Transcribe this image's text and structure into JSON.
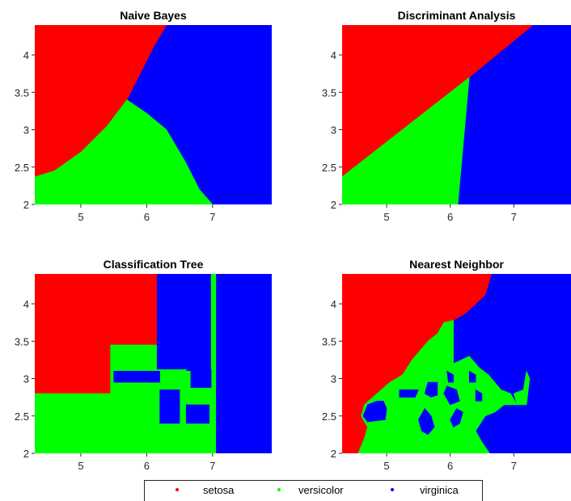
{
  "chart_data": [
    {
      "type": "area",
      "title": "Naive Bayes",
      "xlim": [
        4.3,
        7.9
      ],
      "ylim": [
        2.0,
        4.4
      ],
      "xticks": [
        "5",
        "6",
        "7"
      ],
      "yticks": [
        "2",
        "2.5",
        "3",
        "3.5",
        "4"
      ],
      "regions": [
        {
          "class": "virginica",
          "color": "#0000ff",
          "polygon": [
            [
              4.3,
              2.0
            ],
            [
              7.9,
              2.0
            ],
            [
              7.9,
              4.4
            ],
            [
              4.3,
              4.4
            ]
          ]
        },
        {
          "class": "setosa",
          "color": "#ff0000",
          "polygon": [
            [
              4.3,
              4.4
            ],
            [
              6.3,
              4.4
            ],
            [
              6.1,
              4.1
            ],
            [
              5.9,
              3.75
            ],
            [
              5.7,
              3.4
            ],
            [
              5.4,
              3.05
            ],
            [
              5.0,
              2.7
            ],
            [
              4.6,
              2.45
            ],
            [
              4.3,
              2.37
            ]
          ]
        },
        {
          "class": "versicolor",
          "color": "#00ff00",
          "polygon": [
            [
              4.3,
              2.37
            ],
            [
              4.6,
              2.45
            ],
            [
              5.0,
              2.7
            ],
            [
              5.4,
              3.05
            ],
            [
              5.7,
              3.4
            ],
            [
              6.0,
              3.22
            ],
            [
              6.3,
              3.0
            ],
            [
              6.6,
              2.55
            ],
            [
              6.8,
              2.2
            ],
            [
              7.0,
              2.0
            ],
            [
              4.3,
              2.0
            ]
          ]
        }
      ]
    },
    {
      "type": "area",
      "title": "Discriminant Analysis",
      "xlim": [
        4.3,
        7.9
      ],
      "ylim": [
        2.0,
        4.4
      ],
      "xticks": [
        "5",
        "6",
        "7"
      ],
      "yticks": [
        "2",
        "2.5",
        "3",
        "3.5",
        "4"
      ],
      "regions": [
        {
          "class": "virginica",
          "color": "#0000ff",
          "polygon": [
            [
              4.3,
              2.0
            ],
            [
              7.9,
              2.0
            ],
            [
              7.9,
              4.4
            ],
            [
              4.3,
              4.4
            ]
          ]
        },
        {
          "class": "setosa",
          "color": "#ff0000",
          "polygon": [
            [
              4.3,
              4.4
            ],
            [
              7.3,
              4.4
            ],
            [
              6.3,
              3.7
            ],
            [
              4.3,
              2.37
            ]
          ]
        },
        {
          "class": "versicolor",
          "color": "#00ff00",
          "polygon": [
            [
              4.3,
              2.37
            ],
            [
              6.3,
              3.7
            ],
            [
              6.12,
              2.0
            ],
            [
              4.3,
              2.0
            ]
          ]
        }
      ]
    },
    {
      "type": "area",
      "title": "Classification Tree",
      "xlim": [
        4.3,
        7.9
      ],
      "ylim": [
        2.0,
        4.4
      ],
      "xticks": [
        "5",
        "6",
        "7"
      ],
      "yticks": [
        "2",
        "2.5",
        "3",
        "3.5",
        "4"
      ],
      "regions": [
        {
          "class": "virginica",
          "color": "#0000ff",
          "polygon": [
            [
              4.3,
              2.0
            ],
            [
              7.9,
              2.0
            ],
            [
              7.9,
              4.4
            ],
            [
              4.3,
              4.4
            ]
          ]
        },
        {
          "class": "setosa",
          "color": "#ff0000",
          "polygon": [
            [
              4.3,
              4.4
            ],
            [
              6.15,
              4.4
            ],
            [
              6.15,
              3.45
            ],
            [
              5.45,
              3.45
            ],
            [
              5.45,
              2.8
            ],
            [
              4.3,
              2.8
            ]
          ]
        },
        {
          "class": "versicolor",
          "color": "#00ff00",
          "polygon": [
            [
              4.3,
              2.8
            ],
            [
              5.45,
              2.8
            ],
            [
              5.45,
              3.45
            ],
            [
              6.15,
              3.45
            ],
            [
              6.15,
              3.12
            ],
            [
              6.6,
              3.12
            ],
            [
              6.6,
              2.0
            ],
            [
              4.3,
              2.0
            ]
          ]
        },
        {
          "class": "versicolor",
          "color": "#00ff00",
          "polygon": [
            [
              6.6,
              2.0
            ],
            [
              7.05,
              2.0
            ],
            [
              7.05,
              3.1
            ],
            [
              6.6,
              3.1
            ]
          ]
        },
        {
          "class": "versicolor",
          "color": "#00ff00",
          "polygon": [
            [
              6.65,
              3.1
            ],
            [
              6.72,
              3.1
            ],
            [
              6.72,
              2.9
            ],
            [
              6.65,
              2.9
            ]
          ]
        },
        {
          "class": "versicolor",
          "color": "#00ff00",
          "polygon": [
            [
              6.98,
              4.4
            ],
            [
              7.05,
              4.4
            ],
            [
              7.05,
              3.1
            ],
            [
              6.98,
              3.1
            ]
          ]
        },
        {
          "class": "virginica",
          "color": "#0000ff",
          "polygon": [
            [
              5.5,
              3.1
            ],
            [
              6.2,
              3.1
            ],
            [
              6.2,
              2.95
            ],
            [
              5.5,
              2.95
            ]
          ]
        },
        {
          "class": "virginica",
          "color": "#0000ff",
          "polygon": [
            [
              6.2,
              2.85
            ],
            [
              6.5,
              2.85
            ],
            [
              6.5,
              2.4
            ],
            [
              6.2,
              2.4
            ]
          ]
        },
        {
          "class": "virginica",
          "color": "#0000ff",
          "polygon": [
            [
              6.6,
              2.65
            ],
            [
              6.95,
              2.65
            ],
            [
              6.95,
              2.4
            ],
            [
              6.6,
              2.4
            ]
          ]
        },
        {
          "class": "virginica",
          "color": "#0000ff",
          "polygon": [
            [
              6.67,
              3.12
            ],
            [
              6.98,
              3.12
            ],
            [
              6.98,
              2.88
            ],
            [
              6.67,
              2.88
            ]
          ]
        }
      ]
    },
    {
      "type": "area",
      "title": "Nearest Neighbor",
      "xlim": [
        4.3,
        7.9
      ],
      "ylim": [
        2.0,
        4.4
      ],
      "xticks": [
        "5",
        "6",
        "7"
      ],
      "yticks": [
        "2",
        "2.5",
        "3",
        "3.5",
        "4"
      ],
      "regions": [
        {
          "class": "virginica",
          "color": "#0000ff",
          "polygon": [
            [
              4.3,
              2.0
            ],
            [
              7.9,
              2.0
            ],
            [
              7.9,
              4.4
            ],
            [
              4.3,
              4.4
            ]
          ]
        },
        {
          "class": "setosa",
          "color": "#ff0000",
          "polygon": [
            [
              4.3,
              4.4
            ],
            [
              6.65,
              4.4
            ],
            [
              6.55,
              4.12
            ],
            [
              6.4,
              4.0
            ],
            [
              6.25,
              3.88
            ],
            [
              6.05,
              3.78
            ],
            [
              5.9,
              3.75
            ],
            [
              5.8,
              3.6
            ],
            [
              5.65,
              3.5
            ],
            [
              5.4,
              3.25
            ],
            [
              5.25,
              3.05
            ],
            [
              5.05,
              2.95
            ],
            [
              4.85,
              2.8
            ],
            [
              4.65,
              2.65
            ],
            [
              4.6,
              2.5
            ],
            [
              4.7,
              2.35
            ],
            [
              4.65,
              2.2
            ],
            [
              4.55,
              2.0
            ],
            [
              4.3,
              2.0
            ]
          ]
        },
        {
          "class": "versicolor",
          "color": "#00ff00",
          "polygon": [
            [
              4.55,
              2.0
            ],
            [
              4.65,
              2.2
            ],
            [
              4.7,
              2.35
            ],
            [
              4.6,
              2.5
            ],
            [
              4.65,
              2.65
            ],
            [
              4.85,
              2.8
            ],
            [
              5.05,
              2.95
            ],
            [
              5.25,
              3.05
            ],
            [
              5.4,
              3.25
            ],
            [
              5.65,
              3.5
            ],
            [
              5.8,
              3.6
            ],
            [
              5.9,
              3.75
            ],
            [
              6.05,
              3.78
            ],
            [
              6.05,
              3.2
            ],
            [
              6.3,
              3.3
            ],
            [
              6.45,
              3.15
            ],
            [
              6.6,
              3.05
            ],
            [
              6.7,
              2.95
            ],
            [
              6.8,
              2.85
            ],
            [
              6.95,
              2.8
            ],
            [
              7.05,
              2.65
            ],
            [
              6.85,
              2.65
            ],
            [
              6.7,
              2.55
            ],
            [
              6.55,
              2.5
            ],
            [
              6.4,
              2.3
            ],
            [
              6.5,
              2.15
            ],
            [
              6.62,
              2.0
            ]
          ]
        },
        {
          "class": "versicolor",
          "color": "#00ff00",
          "polygon": [
            [
              7.05,
              2.65
            ],
            [
              7.2,
              2.65
            ],
            [
              7.25,
              3.0
            ],
            [
              7.2,
              3.1
            ],
            [
              7.15,
              2.85
            ],
            [
              7.0,
              2.8
            ]
          ]
        },
        {
          "class": "virginica",
          "color": "#0000ff",
          "polygon": [
            [
              4.63,
              2.5
            ],
            [
              4.7,
              2.65
            ],
            [
              4.85,
              2.7
            ],
            [
              4.95,
              2.7
            ],
            [
              5.0,
              2.6
            ],
            [
              4.98,
              2.45
            ],
            [
              4.7,
              2.42
            ]
          ]
        },
        {
          "class": "virginica",
          "color": "#0000ff",
          "polygon": [
            [
              5.2,
              2.75
            ],
            [
              5.45,
              2.75
            ],
            [
              5.5,
              2.85
            ],
            [
              5.2,
              2.85
            ]
          ]
        },
        {
          "class": "virginica",
          "color": "#0000ff",
          "polygon": [
            [
              5.6,
              2.8
            ],
            [
              5.7,
              2.75
            ],
            [
              5.8,
              2.78
            ],
            [
              5.8,
              2.95
            ],
            [
              5.65,
              2.95
            ]
          ]
        },
        {
          "class": "virginica",
          "color": "#0000ff",
          "polygon": [
            [
              5.6,
              2.6
            ],
            [
              5.7,
              2.5
            ],
            [
              5.75,
              2.35
            ],
            [
              5.65,
              2.25
            ],
            [
              5.55,
              2.3
            ],
            [
              5.5,
              2.45
            ]
          ]
        },
        {
          "class": "virginica",
          "color": "#0000ff",
          "polygon": [
            [
              5.95,
              2.9
            ],
            [
              6.1,
              2.85
            ],
            [
              6.15,
              2.7
            ],
            [
              6.0,
              2.65
            ],
            [
              5.9,
              2.8
            ]
          ]
        },
        {
          "class": "virginica",
          "color": "#0000ff",
          "polygon": [
            [
              5.95,
              3.1
            ],
            [
              6.05,
              3.05
            ],
            [
              6.05,
              2.95
            ],
            [
              5.97,
              2.95
            ]
          ]
        },
        {
          "class": "virginica",
          "color": "#0000ff",
          "polygon": [
            [
              6.0,
              2.45
            ],
            [
              6.1,
              2.6
            ],
            [
              6.2,
              2.55
            ],
            [
              6.15,
              2.4
            ],
            [
              6.05,
              2.35
            ]
          ]
        },
        {
          "class": "virginica",
          "color": "#0000ff",
          "polygon": [
            [
              6.3,
              3.1
            ],
            [
              6.4,
              3.05
            ],
            [
              6.4,
              2.95
            ],
            [
              6.3,
              2.95
            ]
          ]
        },
        {
          "class": "virginica",
          "color": "#0000ff",
          "polygon": [
            [
              6.4,
              2.85
            ],
            [
              6.5,
              2.8
            ],
            [
              6.5,
              2.7
            ],
            [
              6.4,
              2.7
            ]
          ]
        },
        {
          "class": "virginica",
          "color": "#0000ff",
          "polygon": [
            [
              6.7,
              3.1
            ],
            [
              6.8,
              3.1
            ],
            [
              6.8,
              3.0
            ],
            [
              6.7,
              3.0
            ]
          ]
        },
        {
          "class": "virginica",
          "color": "#0000ff",
          "polygon": [
            [
              7.0,
              3.2
            ],
            [
              7.1,
              3.15
            ],
            [
              7.05,
              3.0
            ],
            [
              6.95,
              3.05
            ]
          ]
        }
      ]
    }
  ],
  "legend": {
    "entries": [
      {
        "label": "setosa",
        "color": "#ff0000"
      },
      {
        "label": "versicolor",
        "color": "#00ff00"
      },
      {
        "label": "virginica",
        "color": "#0000ff"
      }
    ]
  }
}
